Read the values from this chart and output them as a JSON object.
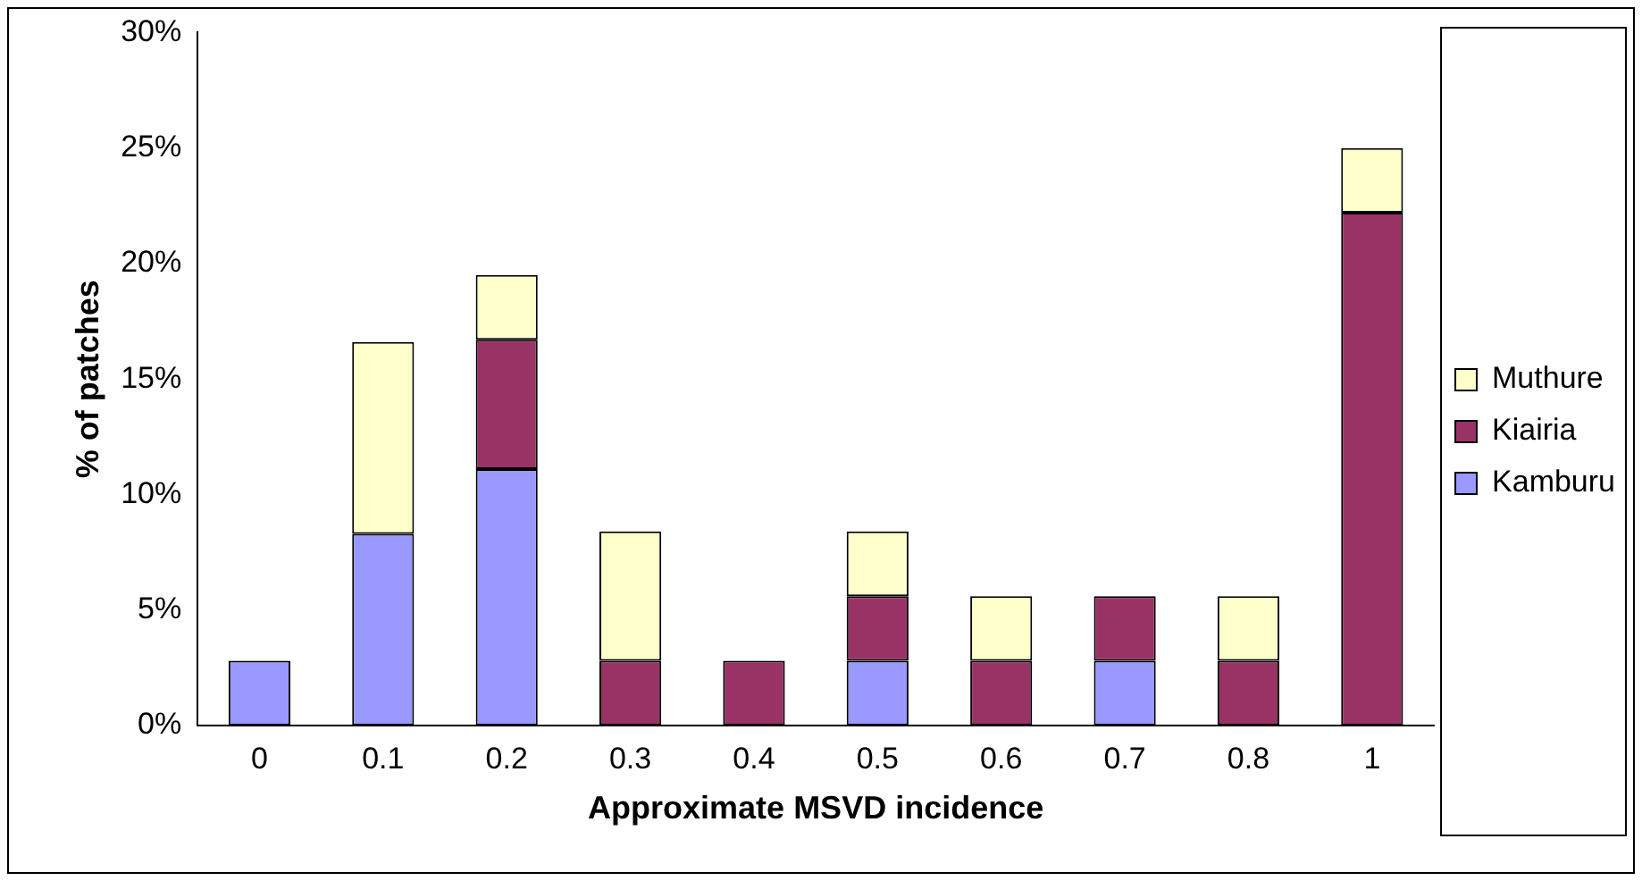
{
  "chart_data": {
    "type": "bar",
    "stacked": true,
    "xlabel": "Approximate MSVD incidence",
    "ylabel": "% of patches",
    "categories": [
      "0",
      "0.1",
      "0.2",
      "0.3",
      "0.4",
      "0.5",
      "0.6",
      "0.7",
      "0.8",
      "1"
    ],
    "series": [
      {
        "name": "Kamburu",
        "color": "#9999ff",
        "values": [
          2.8,
          8.3,
          11.1,
          null,
          null,
          2.8,
          null,
          2.8,
          null,
          null
        ]
      },
      {
        "name": "Kiairia",
        "color": "#993366",
        "values": [
          null,
          null,
          5.6,
          2.8,
          2.8,
          2.8,
          2.8,
          2.8,
          2.8,
          22.2
        ]
      },
      {
        "name": "Muthure",
        "color": "#ffffcc",
        "values": [
          null,
          8.3,
          2.8,
          5.6,
          null,
          2.8,
          2.8,
          null,
          2.8,
          2.8
        ]
      }
    ],
    "ylim": [
      0,
      30
    ],
    "yticks": [
      {
        "value": 0,
        "label": "0%"
      },
      {
        "value": 5,
        "label": "5%"
      },
      {
        "value": 10,
        "label": "10%"
      },
      {
        "value": 15,
        "label": "15%"
      },
      {
        "value": 20,
        "label": "20%"
      },
      {
        "value": 25,
        "label": "25%"
      },
      {
        "value": 30,
        "label": "30%"
      }
    ],
    "grid": false,
    "legend": "right"
  }
}
